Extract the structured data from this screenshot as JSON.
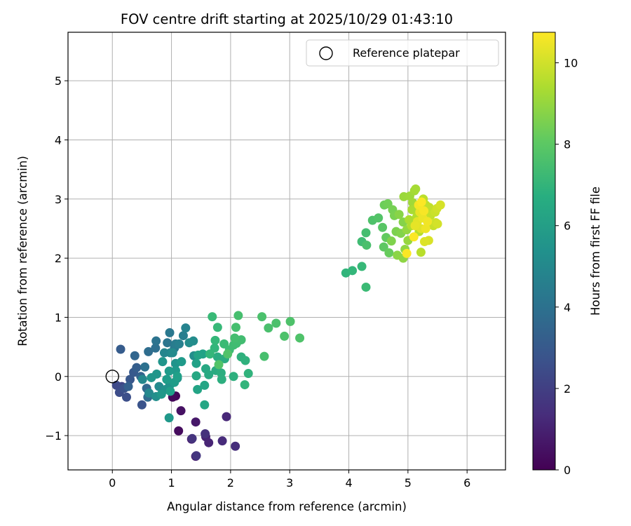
{
  "chart_data": {
    "type": "scatter",
    "title": "FOV centre drift starting at 2025/10/29 01:43:10",
    "xlabel": "Angular distance from reference (arcmin)",
    "ylabel": "Rotation from reference (arcmin)",
    "xlim": [
      -0.75,
      6.65
    ],
    "ylim": [
      -1.58,
      5.82
    ],
    "xticks": [
      0,
      1,
      2,
      3,
      4,
      5,
      6
    ],
    "yticks": [
      -1,
      0,
      1,
      2,
      3,
      4,
      5
    ],
    "grid": true,
    "legend": {
      "placement": "top-right",
      "label": "Reference platepar",
      "marker": "open-circle"
    },
    "reference_point": {
      "x": 0,
      "y": 0
    },
    "colorbar": {
      "label": "Hours from first FF file",
      "colormap": "viridis",
      "range": [
        0,
        10.75
      ],
      "ticks": [
        0,
        2,
        4,
        6,
        8,
        10
      ]
    },
    "points": [
      {
        "x": 1.07,
        "y": -0.33,
        "c": 0.1
      },
      {
        "x": 1.02,
        "y": -0.35,
        "c": 0.2
      },
      {
        "x": 1.12,
        "y": -0.92,
        "c": 0.3
      },
      {
        "x": 1.16,
        "y": -0.58,
        "c": 0.5
      },
      {
        "x": 1.41,
        "y": -0.77,
        "c": 0.7
      },
      {
        "x": 1.34,
        "y": -1.06,
        "c": 0.8
      },
      {
        "x": 1.41,
        "y": -1.35,
        "c": 0.9
      },
      {
        "x": 1.58,
        "y": -1.02,
        "c": 1.0
      },
      {
        "x": 1.63,
        "y": -1.12,
        "c": 1.1
      },
      {
        "x": 1.93,
        "y": -0.68,
        "c": 1.2
      },
      {
        "x": 1.86,
        "y": -1.09,
        "c": 1.3
      },
      {
        "x": 2.08,
        "y": -1.18,
        "c": 1.4
      },
      {
        "x": 1.57,
        "y": -0.97,
        "c": 1.5
      },
      {
        "x": 1.35,
        "y": -1.05,
        "c": 1.6
      },
      {
        "x": 1.42,
        "y": -1.34,
        "c": 1.7
      },
      {
        "x": 0.16,
        "y": -0.17,
        "c": 2.2
      },
      {
        "x": 0.07,
        "y": -0.15,
        "c": 2.4
      },
      {
        "x": 0.12,
        "y": -0.27,
        "c": 2.5
      },
      {
        "x": 0.24,
        "y": -0.35,
        "c": 2.6
      },
      {
        "x": 0.2,
        "y": -0.2,
        "c": 2.7
      },
      {
        "x": 0.5,
        "y": -0.48,
        "c": 2.8
      },
      {
        "x": 0.3,
        "y": -0.05,
        "c": 2.9
      },
      {
        "x": 0.36,
        "y": 0.07,
        "c": 3.0
      },
      {
        "x": 0.14,
        "y": 0.46,
        "c": 3.1
      },
      {
        "x": 0.41,
        "y": 0.15,
        "c": 3.2
      },
      {
        "x": 0.27,
        "y": -0.17,
        "c": 3.3
      },
      {
        "x": 0.48,
        "y": 0.0,
        "c": 3.4
      },
      {
        "x": 0.38,
        "y": 0.35,
        "c": 3.5
      },
      {
        "x": 0.58,
        "y": -0.2,
        "c": 3.6
      },
      {
        "x": 0.6,
        "y": -0.35,
        "c": 3.7
      },
      {
        "x": 0.61,
        "y": 0.42,
        "c": 3.8
      },
      {
        "x": 0.73,
        "y": 0.48,
        "c": 3.9
      },
      {
        "x": 0.55,
        "y": 0.16,
        "c": 4.0
      },
      {
        "x": 0.74,
        "y": 0.6,
        "c": 4.1
      },
      {
        "x": 0.93,
        "y": 0.57,
        "c": 4.2
      },
      {
        "x": 0.97,
        "y": 0.74,
        "c": 4.3
      },
      {
        "x": 1.05,
        "y": 0.48,
        "c": 4.4
      },
      {
        "x": 1.07,
        "y": 0.55,
        "c": 4.5
      },
      {
        "x": 1.2,
        "y": 0.69,
        "c": 4.6
      },
      {
        "x": 1.13,
        "y": 0.55,
        "c": 4.7
      },
      {
        "x": 1.24,
        "y": 0.82,
        "c": 4.8
      },
      {
        "x": 0.88,
        "y": 0.4,
        "c": 4.9
      },
      {
        "x": 0.98,
        "y": 0.4,
        "c": 4.95
      },
      {
        "x": 0.51,
        "y": -0.05,
        "c": 5.0
      },
      {
        "x": 0.62,
        "y": -0.28,
        "c": 5.05
      },
      {
        "x": 0.79,
        "y": -0.17,
        "c": 5.1
      },
      {
        "x": 1.02,
        "y": 0.4,
        "c": 5.15
      },
      {
        "x": 1.37,
        "y": 0.6,
        "c": 5.2
      },
      {
        "x": 1.3,
        "y": 0.57,
        "c": 5.25
      },
      {
        "x": 1.38,
        "y": 0.35,
        "c": 5.3
      },
      {
        "x": 0.74,
        "y": -0.34,
        "c": 5.35
      },
      {
        "x": 0.9,
        "y": -0.22,
        "c": 5.4
      },
      {
        "x": 0.97,
        "y": -0.15,
        "c": 5.45
      },
      {
        "x": 1.1,
        "y": -0.03,
        "c": 5.5
      },
      {
        "x": 1.07,
        "y": 0.22,
        "c": 5.55
      },
      {
        "x": 0.85,
        "y": 0.25,
        "c": 5.6
      },
      {
        "x": 0.75,
        "y": 0.04,
        "c": 5.62
      },
      {
        "x": 0.66,
        "y": -0.02,
        "c": 5.65
      },
      {
        "x": 0.83,
        "y": -0.3,
        "c": 5.7
      },
      {
        "x": 0.96,
        "y": -0.7,
        "c": 5.72
      },
      {
        "x": 1.07,
        "y": 0.1,
        "c": 5.75
      },
      {
        "x": 1.17,
        "y": 0.25,
        "c": 5.8
      },
      {
        "x": 0.96,
        "y": 0.09,
        "c": 5.85
      },
      {
        "x": 0.92,
        "y": -0.05,
        "c": 5.9
      },
      {
        "x": 1.05,
        "y": -0.1,
        "c": 5.95
      },
      {
        "x": 0.98,
        "y": -0.25,
        "c": 6.0
      },
      {
        "x": 1.1,
        "y": 0.0,
        "c": 6.05
      },
      {
        "x": 1.42,
        "y": 0.22,
        "c": 6.1
      },
      {
        "x": 1.53,
        "y": 0.38,
        "c": 6.15
      },
      {
        "x": 1.45,
        "y": 0.36,
        "c": 6.2
      },
      {
        "x": 1.44,
        "y": -0.22,
        "c": 6.25
      },
      {
        "x": 1.56,
        "y": -0.15,
        "c": 6.3
      },
      {
        "x": 1.56,
        "y": -0.48,
        "c": 6.35
      },
      {
        "x": 1.42,
        "y": 0.01,
        "c": 6.4
      },
      {
        "x": 1.58,
        "y": 0.13,
        "c": 6.45
      },
      {
        "x": 1.63,
        "y": 0.03,
        "c": 6.5
      },
      {
        "x": 1.75,
        "y": 0.1,
        "c": 6.55
      },
      {
        "x": 1.78,
        "y": 0.33,
        "c": 6.6
      },
      {
        "x": 1.9,
        "y": 0.3,
        "c": 6.65
      },
      {
        "x": 1.84,
        "y": 0.06,
        "c": 6.7
      },
      {
        "x": 1.85,
        "y": -0.05,
        "c": 6.75
      },
      {
        "x": 2.05,
        "y": 0.0,
        "c": 6.8
      },
      {
        "x": 2.18,
        "y": 0.33,
        "c": 6.85
      },
      {
        "x": 2.25,
        "y": 0.27,
        "c": 6.9
      },
      {
        "x": 2.3,
        "y": 0.05,
        "c": 6.95
      },
      {
        "x": 2.24,
        "y": -0.14,
        "c": 7.0
      },
      {
        "x": 1.73,
        "y": 0.48,
        "c": 7.05
      },
      {
        "x": 1.65,
        "y": 0.38,
        "c": 7.1
      },
      {
        "x": 1.74,
        "y": 0.61,
        "c": 7.15
      },
      {
        "x": 1.78,
        "y": 0.83,
        "c": 7.2
      },
      {
        "x": 1.69,
        "y": 1.01,
        "c": 7.25
      },
      {
        "x": 1.89,
        "y": 0.55,
        "c": 7.3
      },
      {
        "x": 1.98,
        "y": 0.45,
        "c": 7.35
      },
      {
        "x": 2.05,
        "y": 0.53,
        "c": 7.4
      },
      {
        "x": 2.1,
        "y": 0.56,
        "c": 7.42
      },
      {
        "x": 2.18,
        "y": 0.62,
        "c": 7.45
      },
      {
        "x": 2.07,
        "y": 0.65,
        "c": 7.5
      },
      {
        "x": 2.09,
        "y": 0.83,
        "c": 7.52
      },
      {
        "x": 2.13,
        "y": 1.03,
        "c": 7.55
      },
      {
        "x": 2.57,
        "y": 0.34,
        "c": 7.57
      },
      {
        "x": 2.64,
        "y": 0.82,
        "c": 7.6
      },
      {
        "x": 2.53,
        "y": 1.01,
        "c": 7.62
      },
      {
        "x": 2.77,
        "y": 0.9,
        "c": 7.65
      },
      {
        "x": 2.91,
        "y": 0.68,
        "c": 7.68
      },
      {
        "x": 3.01,
        "y": 0.93,
        "c": 7.7
      },
      {
        "x": 3.17,
        "y": 0.65,
        "c": 7.72
      },
      {
        "x": 1.95,
        "y": 0.38,
        "c": 7.75
      },
      {
        "x": 1.8,
        "y": 0.2,
        "c": 7.78
      },
      {
        "x": 3.95,
        "y": 1.75,
        "c": 7.0
      },
      {
        "x": 4.06,
        "y": 1.79,
        "c": 7.1
      },
      {
        "x": 4.22,
        "y": 1.86,
        "c": 7.2
      },
      {
        "x": 4.29,
        "y": 1.51,
        "c": 7.3
      },
      {
        "x": 4.22,
        "y": 2.28,
        "c": 7.4
      },
      {
        "x": 4.29,
        "y": 2.43,
        "c": 7.5
      },
      {
        "x": 4.3,
        "y": 2.22,
        "c": 7.6
      },
      {
        "x": 4.4,
        "y": 2.64,
        "c": 7.7
      },
      {
        "x": 4.5,
        "y": 2.68,
        "c": 7.8
      },
      {
        "x": 4.57,
        "y": 2.52,
        "c": 7.9
      },
      {
        "x": 4.59,
        "y": 2.19,
        "c": 8.0
      },
      {
        "x": 4.63,
        "y": 2.35,
        "c": 8.1
      },
      {
        "x": 4.68,
        "y": 2.09,
        "c": 8.2
      },
      {
        "x": 4.6,
        "y": 2.9,
        "c": 8.3
      },
      {
        "x": 4.66,
        "y": 2.92,
        "c": 8.4
      },
      {
        "x": 4.74,
        "y": 2.82,
        "c": 8.5
      },
      {
        "x": 4.77,
        "y": 2.72,
        "c": 8.55
      },
      {
        "x": 4.8,
        "y": 2.45,
        "c": 8.6
      },
      {
        "x": 4.72,
        "y": 2.29,
        "c": 8.65
      },
      {
        "x": 4.88,
        "y": 2.42,
        "c": 8.7
      },
      {
        "x": 4.92,
        "y": 2.61,
        "c": 8.75
      },
      {
        "x": 4.85,
        "y": 2.74,
        "c": 8.8
      },
      {
        "x": 4.82,
        "y": 2.05,
        "c": 8.85
      },
      {
        "x": 4.92,
        "y": 2.0,
        "c": 8.9
      },
      {
        "x": 4.95,
        "y": 2.15,
        "c": 8.95
      },
      {
        "x": 4.98,
        "y": 2.48,
        "c": 9.0
      },
      {
        "x": 5.0,
        "y": 2.3,
        "c": 9.05
      },
      {
        "x": 4.93,
        "y": 3.04,
        "c": 9.1
      },
      {
        "x": 5.03,
        "y": 3.05,
        "c": 9.15
      },
      {
        "x": 5.08,
        "y": 2.94,
        "c": 9.2
      },
      {
        "x": 5.11,
        "y": 3.14,
        "c": 9.25
      },
      {
        "x": 5.13,
        "y": 3.17,
        "c": 9.3
      },
      {
        "x": 5.07,
        "y": 2.82,
        "c": 9.35
      },
      {
        "x": 5.02,
        "y": 2.65,
        "c": 9.4
      },
      {
        "x": 5.06,
        "y": 2.55,
        "c": 9.45
      },
      {
        "x": 5.15,
        "y": 2.7,
        "c": 9.5
      },
      {
        "x": 5.19,
        "y": 2.45,
        "c": 9.55
      },
      {
        "x": 5.22,
        "y": 2.1,
        "c": 9.6
      },
      {
        "x": 5.26,
        "y": 3.0,
        "c": 9.65
      },
      {
        "x": 5.3,
        "y": 2.9,
        "c": 9.7
      },
      {
        "x": 5.36,
        "y": 2.86,
        "c": 9.75
      },
      {
        "x": 5.38,
        "y": 2.72,
        "c": 9.8
      },
      {
        "x": 5.43,
        "y": 2.55,
        "c": 9.85
      },
      {
        "x": 5.46,
        "y": 2.78,
        "c": 9.9
      },
      {
        "x": 5.47,
        "y": 2.6,
        "c": 9.95
      },
      {
        "x": 5.49,
        "y": 2.84,
        "c": 10.0
      },
      {
        "x": 5.5,
        "y": 2.58,
        "c": 10.05
      },
      {
        "x": 5.55,
        "y": 2.9,
        "c": 10.1
      },
      {
        "x": 5.35,
        "y": 2.3,
        "c": 10.15
      },
      {
        "x": 5.28,
        "y": 2.28,
        "c": 10.2
      },
      {
        "x": 5.22,
        "y": 2.5,
        "c": 10.25
      },
      {
        "x": 5.16,
        "y": 2.62,
        "c": 10.3
      },
      {
        "x": 5.12,
        "y": 2.55,
        "c": 10.35
      },
      {
        "x": 5.2,
        "y": 2.78,
        "c": 10.4
      },
      {
        "x": 5.25,
        "y": 2.68,
        "c": 10.45
      },
      {
        "x": 5.3,
        "y": 2.5,
        "c": 10.5
      },
      {
        "x": 5.33,
        "y": 2.62,
        "c": 10.55
      },
      {
        "x": 5.18,
        "y": 2.9,
        "c": 10.6
      },
      {
        "x": 5.27,
        "y": 2.8,
        "c": 10.65
      },
      {
        "x": 4.98,
        "y": 2.08,
        "c": 10.7
      },
      {
        "x": 5.1,
        "y": 2.36,
        "c": 10.72
      },
      {
        "x": 5.23,
        "y": 2.95,
        "c": 10.74
      }
    ]
  }
}
